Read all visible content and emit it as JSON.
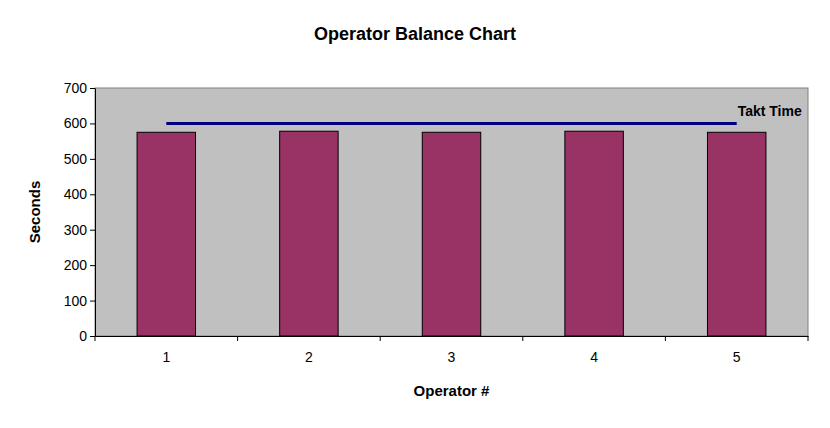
{
  "chart_data": {
    "type": "bar",
    "title": "Operator Balance Chart",
    "x_label": "Operator #",
    "y_label": "Seconds",
    "categories": [
      "1",
      "2",
      "3",
      "4",
      "5"
    ],
    "values": [
      575,
      578,
      575,
      578,
      575
    ],
    "color": "#993366",
    "ylim": [
      0,
      700
    ],
    "yticks": [
      0,
      100,
      200,
      300,
      400,
      500,
      600,
      700
    ],
    "grid": false,
    "reference_line": {
      "value": 600,
      "label": "Takt Time"
    }
  }
}
